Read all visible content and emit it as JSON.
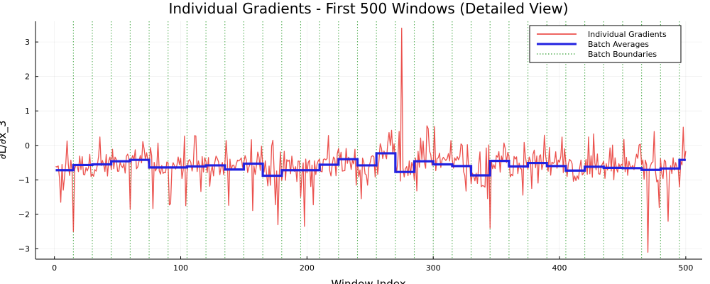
{
  "chart_data": {
    "type": "line",
    "title": "Individual Gradients - First 500 Windows (Detailed View)",
    "xlabel": "Window Index",
    "ylabel": "∂L/∂x_3",
    "xlim": [
      -15,
      513
    ],
    "ylim": [
      -3.3,
      3.6
    ],
    "xticks": [
      0,
      100,
      200,
      300,
      400,
      500
    ],
    "yticks": [
      -3,
      -2,
      -1,
      0,
      1,
      2,
      3
    ],
    "grid": true,
    "legend_position": "top-right",
    "colors": {
      "gradients": "#e8332e",
      "averages": "#2222e0",
      "boundaries": "#3aa13a"
    },
    "batch_size": 15,
    "batch_boundaries": [
      15,
      30,
      45,
      60,
      75,
      90,
      105,
      120,
      135,
      150,
      165,
      180,
      195,
      210,
      225,
      240,
      255,
      270,
      285,
      300,
      315,
      330,
      345,
      360,
      375,
      390,
      405,
      420,
      435,
      450,
      465,
      480,
      495
    ],
    "batch_averages": [
      -0.72,
      -0.57,
      -0.55,
      -0.46,
      -0.42,
      -0.64,
      -0.64,
      -0.61,
      -0.58,
      -0.7,
      -0.53,
      -0.88,
      -0.72,
      -0.72,
      -0.56,
      -0.4,
      -0.58,
      -0.23,
      -0.77,
      -0.46,
      -0.55,
      -0.6,
      -0.87,
      -0.45,
      -0.61,
      -0.51,
      -0.6,
      -0.73,
      -0.62,
      -0.65,
      -0.66,
      -0.71,
      -0.67,
      -0.42
    ],
    "series": [
      {
        "name": "Individual Gradients",
        "x": [
          1,
          500
        ]
      },
      {
        "name": "Batch Averages",
        "x": [
          1,
          500
        ]
      },
      {
        "name": "Batch Boundaries",
        "x": [
          15,
          495
        ]
      }
    ],
    "notable_points": [
      {
        "x": 5,
        "y": -1.65
      },
      {
        "x": 15,
        "y": -2.5
      },
      {
        "x": 60,
        "y": -1.85
      },
      {
        "x": 177,
        "y": -2.3
      },
      {
        "x": 198,
        "y": -2.35
      },
      {
        "x": 275,
        "y": 3.4
      },
      {
        "x": 345,
        "y": -2.4
      },
      {
        "x": 470,
        "y": -3.1
      },
      {
        "x": 486,
        "y": -2.2
      }
    ]
  }
}
